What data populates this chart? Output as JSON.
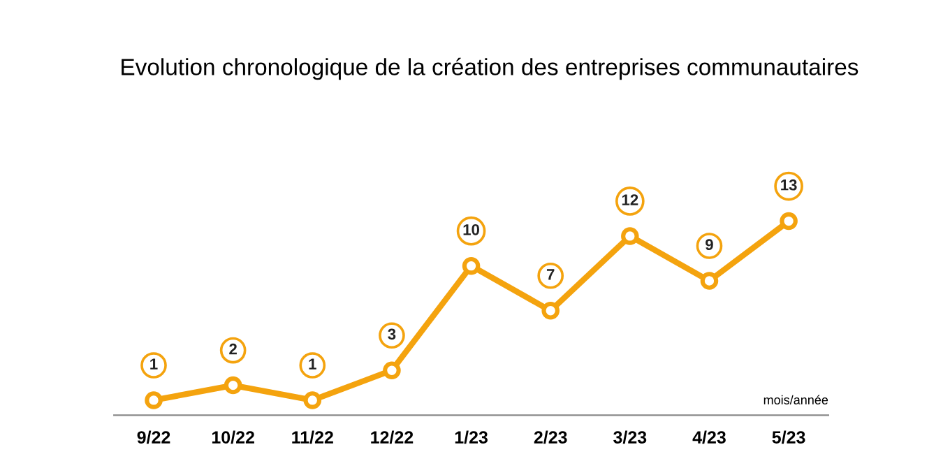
{
  "chart_data": {
    "type": "line",
    "title": "Evolution chronologique de la création des entreprises communautaires",
    "xlabel": "mois/année",
    "categories": [
      "9/22",
      "10/22",
      "11/22",
      "12/22",
      "1/23",
      "2/23",
      "3/23",
      "4/23",
      "5/23"
    ],
    "series": [
      {
        "color": "#f4a30e",
        "values": [
          1,
          2,
          1,
          3,
          10,
          7,
          12,
          9,
          13
        ]
      }
    ],
    "data_labels": true,
    "marker": "circle",
    "line_style": "solid",
    "grid": false,
    "legend": false,
    "tick_labels": "x"
  }
}
